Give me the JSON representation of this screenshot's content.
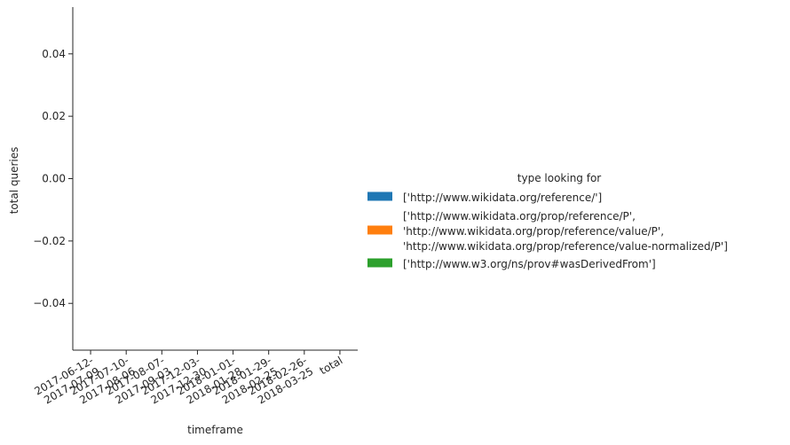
{
  "chart_data": {
    "type": "bar",
    "xlabel": "timeframe",
    "ylabel": "total queries",
    "categories": [
      "2017-06-12-\n2017-07-09",
      "2017-07-10-\n2017-08-06",
      "2017-08-07-\n2017-09-03",
      "2017-12-03-\n2017-12-30",
      "2018-01-01-\n2018-01-28",
      "2018-01-29-\n2018-02-25",
      "2018-02-26-\n2018-03-25",
      "total"
    ],
    "ylim": [
      -0.055,
      0.055
    ],
    "yticks": [
      -0.04,
      -0.02,
      0.0,
      0.02,
      0.04
    ],
    "ytick_labels": [
      "−0.04",
      "−0.02",
      "0.00",
      "0.02",
      "0.04"
    ],
    "grid": false,
    "legend": {
      "title": "type looking for",
      "placement": "right",
      "entries": [
        {
          "label": "['http://www.wikidata.org/reference/']",
          "color": "#1f77b4"
        },
        {
          "label": "['http://www.wikidata.org/prop/reference/P',\n'http://www.wikidata.org/prop/reference/value/P',\n'http://www.wikidata.org/prop/reference/value-normalized/P']",
          "color": "#ff7f0e"
        },
        {
          "label": "['http://www.w3.org/ns/prov#wasDerivedFrom']",
          "color": "#2ca02c"
        }
      ]
    },
    "series": [
      {
        "name": "['http://www.wikidata.org/reference/']",
        "values": [
          0,
          0,
          0,
          0,
          0,
          0,
          0,
          0
        ]
      },
      {
        "name": "['http://www.wikidata.org/prop/reference/P',\n'http://www.wikidata.org/prop/reference/value/P',\n'http://www.wikidata.org/prop/reference/value-normalized/P']",
        "values": [
          0,
          0,
          0,
          0,
          0,
          0,
          0,
          0
        ]
      },
      {
        "name": "['http://www.w3.org/ns/prov#wasDerivedFrom']",
        "values": [
          0,
          0,
          0,
          0,
          0,
          0,
          0,
          0
        ]
      }
    ]
  }
}
